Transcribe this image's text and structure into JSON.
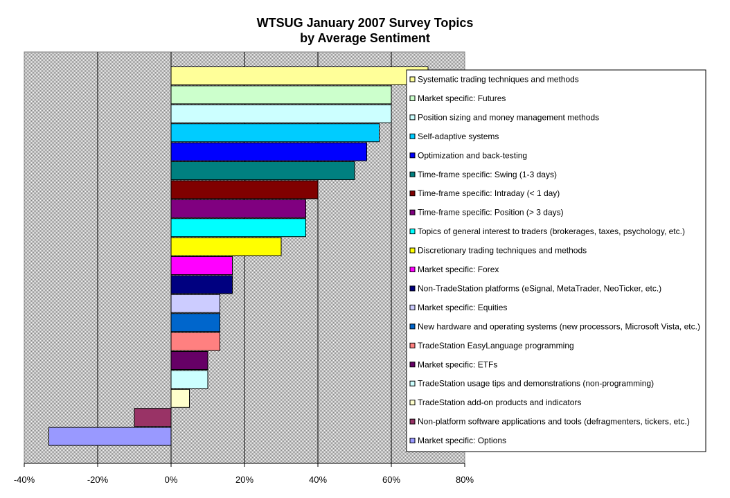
{
  "chart_data": {
    "type": "bar",
    "orientation": "horizontal",
    "title": "WTSUG January 2007 Survey Topics",
    "subtitle": "by Average Sentiment",
    "xlabel": "",
    "ylabel": "",
    "xlim": [
      -40,
      80
    ],
    "x_ticks": [
      "-40%",
      "-20%",
      "0%",
      "20%",
      "40%",
      "60%",
      "80%"
    ],
    "grid": "vertical",
    "legend_position": "right",
    "series": [
      {
        "name": "Systematic trading techniques and methods",
        "value": 70,
        "color": "#FFFF99"
      },
      {
        "name": "Market specific: Futures",
        "value": 60,
        "color": "#CCFFCC"
      },
      {
        "name": "Position sizing and money management methods",
        "value": 60,
        "color": "#CCFFFF"
      },
      {
        "name": "Self-adaptive systems",
        "value": 56.7,
        "color": "#00CCFF"
      },
      {
        "name": "Optimization and back-testing",
        "value": 53.3,
        "color": "#0000FF"
      },
      {
        "name": "Time-frame specific: Swing (1-3 days)",
        "value": 50,
        "color": "#008080"
      },
      {
        "name": "Time-frame specific: Intraday (< 1 day)",
        "value": 40,
        "color": "#800000"
      },
      {
        "name": "Time-frame specific: Position (> 3 days)",
        "value": 36.7,
        "color": "#800080"
      },
      {
        "name": "Topics of general interest to traders (brokerages, taxes, psychology, etc.)",
        "value": 36.7,
        "color": "#00FFFF"
      },
      {
        "name": "Discretionary trading techniques and methods",
        "value": 30,
        "color": "#FFFF00"
      },
      {
        "name": "Market specific: Forex",
        "value": 16.7,
        "color": "#FF00FF"
      },
      {
        "name": "Non-TradeStation platforms (eSignal, MetaTrader, NeoTicker, etc.)",
        "value": 16.7,
        "color": "#000080"
      },
      {
        "name": "Market specific: Equities",
        "value": 13.3,
        "color": "#CCCCFF"
      },
      {
        "name": "New hardware and operating systems (new processors, Microsoft Vista, etc.)",
        "value": 13.3,
        "color": "#0066CC"
      },
      {
        "name": "TradeStation EasyLanguage programming",
        "value": 13.3,
        "color": "#FF8080"
      },
      {
        "name": "Market specific: ETFs",
        "value": 10,
        "color": "#660066"
      },
      {
        "name": "TradeStation usage tips and demonstrations (non-programming)",
        "value": 10,
        "color": "#CCFFFF"
      },
      {
        "name": "TradeStation add-on products and indicators",
        "value": 5,
        "color": "#FFFFCC"
      },
      {
        "name": "Non-platform software applications and tools (defragmenters, tickers, etc.)",
        "value": -10,
        "color": "#993366"
      },
      {
        "name": "Market specific: Options",
        "value": -33.3,
        "color": "#9999FF"
      }
    ]
  }
}
